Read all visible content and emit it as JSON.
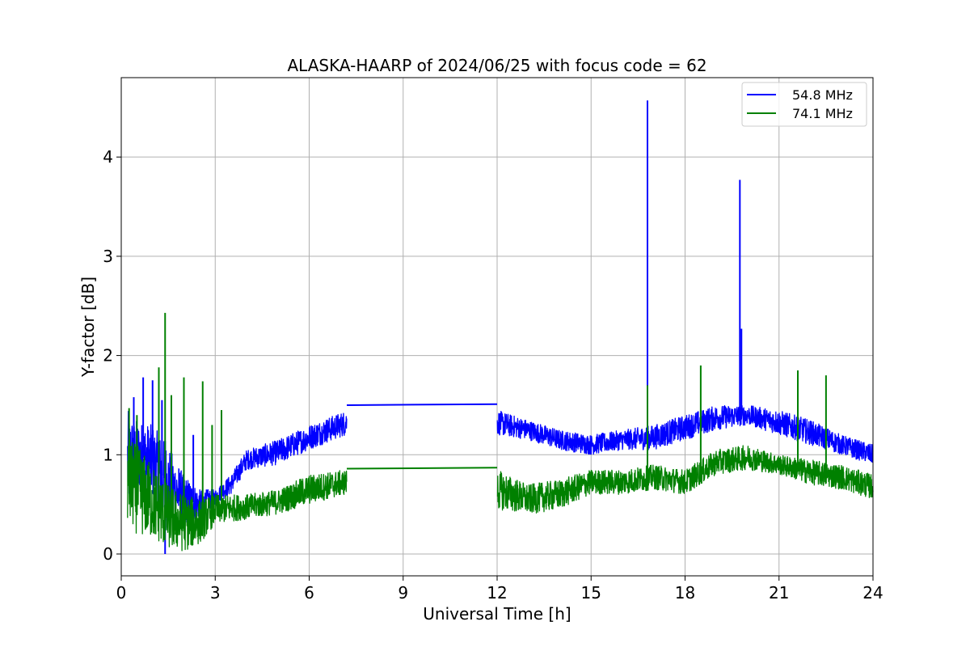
{
  "chart_data": {
    "type": "line",
    "title": "ALASKA-HAARP of 2024/06/25 with focus code = 62",
    "xlabel": "Universal Time [h]",
    "ylabel": "Y-factor [dB]",
    "xlim": [
      0,
      24
    ],
    "ylim": [
      -0.22,
      4.8
    ],
    "xticks": [
      0,
      3,
      6,
      9,
      12,
      15,
      18,
      21,
      24
    ],
    "yticks": [
      0,
      1,
      2,
      3,
      4
    ],
    "grid": true,
    "legend_position": "top-right",
    "series": [
      {
        "name": "54.8 MHz",
        "color": "#0000ff",
        "envelope": [
          {
            "x": 0.2,
            "lo": 0.4,
            "hi": 1.45
          },
          {
            "x": 0.5,
            "lo": 0.65,
            "hi": 1.35
          },
          {
            "x": 1.0,
            "lo": 0.55,
            "hi": 1.3
          },
          {
            "x": 1.5,
            "lo": 0.3,
            "hi": 1.1
          },
          {
            "x": 2.0,
            "lo": 0.3,
            "hi": 0.8
          },
          {
            "x": 2.5,
            "lo": 0.35,
            "hi": 0.65
          },
          {
            "x": 3.0,
            "lo": 0.5,
            "hi": 0.65
          },
          {
            "x": 3.5,
            "lo": 0.6,
            "hi": 0.8
          },
          {
            "x": 4.0,
            "lo": 0.85,
            "hi": 1.05
          },
          {
            "x": 5.0,
            "lo": 0.9,
            "hi": 1.15
          },
          {
            "x": 6.0,
            "lo": 1.05,
            "hi": 1.3
          },
          {
            "x": 7.2,
            "lo": 1.2,
            "hi": 1.45
          },
          {
            "x": 12.0,
            "lo": 1.2,
            "hi": 1.45
          },
          {
            "x": 13.0,
            "lo": 1.15,
            "hi": 1.35
          },
          {
            "x": 14.0,
            "lo": 1.05,
            "hi": 1.25
          },
          {
            "x": 15.0,
            "lo": 1.0,
            "hi": 1.2
          },
          {
            "x": 16.0,
            "lo": 1.05,
            "hi": 1.25
          },
          {
            "x": 17.0,
            "lo": 1.05,
            "hi": 1.3
          },
          {
            "x": 18.0,
            "lo": 1.15,
            "hi": 1.4
          },
          {
            "x": 19.0,
            "lo": 1.25,
            "hi": 1.5
          },
          {
            "x": 20.0,
            "lo": 1.3,
            "hi": 1.5
          },
          {
            "x": 21.0,
            "lo": 1.2,
            "hi": 1.45
          },
          {
            "x": 22.0,
            "lo": 1.1,
            "hi": 1.35
          },
          {
            "x": 23.0,
            "lo": 1.0,
            "hi": 1.2
          },
          {
            "x": 24.0,
            "lo": 0.9,
            "hi": 1.1
          }
        ],
        "gap": {
          "from": [
            7.2,
            1.5
          ],
          "to": [
            12.0,
            1.51
          ]
        },
        "spikes": [
          {
            "x": 0.4,
            "y": 1.58
          },
          {
            "x": 0.7,
            "y": 1.78
          },
          {
            "x": 1.0,
            "y": 1.75
          },
          {
            "x": 1.3,
            "y": 1.55
          },
          {
            "x": 1.4,
            "y": 0.0
          },
          {
            "x": 2.3,
            "y": 1.2
          },
          {
            "x": 16.8,
            "y": 4.57
          },
          {
            "x": 19.75,
            "y": 3.77
          },
          {
            "x": 19.8,
            "y": 2.27
          }
        ]
      },
      {
        "name": "74.1 MHz",
        "color": "#008000",
        "envelope": [
          {
            "x": 0.2,
            "lo": 0.3,
            "hi": 1.2
          },
          {
            "x": 0.5,
            "lo": 0.2,
            "hi": 1.1
          },
          {
            "x": 1.0,
            "lo": 0.15,
            "hi": 0.9
          },
          {
            "x": 1.5,
            "lo": 0.05,
            "hi": 0.7
          },
          {
            "x": 2.0,
            "lo": 0.02,
            "hi": 0.6
          },
          {
            "x": 2.5,
            "lo": 0.1,
            "hi": 0.55
          },
          {
            "x": 3.0,
            "lo": 0.3,
            "hi": 0.6
          },
          {
            "x": 4.0,
            "lo": 0.35,
            "hi": 0.6
          },
          {
            "x": 5.0,
            "lo": 0.4,
            "hi": 0.65
          },
          {
            "x": 6.0,
            "lo": 0.5,
            "hi": 0.8
          },
          {
            "x": 7.2,
            "lo": 0.6,
            "hi": 0.85
          },
          {
            "x": 12.0,
            "lo": 0.45,
            "hi": 0.85
          },
          {
            "x": 13.0,
            "lo": 0.4,
            "hi": 0.7
          },
          {
            "x": 14.0,
            "lo": 0.45,
            "hi": 0.75
          },
          {
            "x": 15.0,
            "lo": 0.6,
            "hi": 0.85
          },
          {
            "x": 16.0,
            "lo": 0.6,
            "hi": 0.85
          },
          {
            "x": 17.0,
            "lo": 0.65,
            "hi": 0.9
          },
          {
            "x": 18.0,
            "lo": 0.6,
            "hi": 0.85
          },
          {
            "x": 19.0,
            "lo": 0.8,
            "hi": 1.05
          },
          {
            "x": 20.0,
            "lo": 0.85,
            "hi": 1.1
          },
          {
            "x": 21.0,
            "lo": 0.8,
            "hi": 1.0
          },
          {
            "x": 22.0,
            "lo": 0.7,
            "hi": 0.95
          },
          {
            "x": 23.0,
            "lo": 0.65,
            "hi": 0.9
          },
          {
            "x": 24.0,
            "lo": 0.55,
            "hi": 0.8
          }
        ],
        "gap": {
          "from": [
            7.2,
            0.86
          ],
          "to": [
            12.0,
            0.87
          ]
        },
        "spikes": [
          {
            "x": 0.25,
            "y": 1.47
          },
          {
            "x": 0.5,
            "y": 1.4
          },
          {
            "x": 1.2,
            "y": 1.88
          },
          {
            "x": 1.4,
            "y": 2.43
          },
          {
            "x": 1.6,
            "y": 1.6
          },
          {
            "x": 2.0,
            "y": 1.78
          },
          {
            "x": 2.6,
            "y": 1.74
          },
          {
            "x": 2.9,
            "y": 1.3
          },
          {
            "x": 3.2,
            "y": 1.45
          },
          {
            "x": 16.8,
            "y": 1.7
          },
          {
            "x": 18.5,
            "y": 1.9
          },
          {
            "x": 21.6,
            "y": 1.85
          },
          {
            "x": 22.5,
            "y": 1.8
          }
        ]
      }
    ]
  }
}
